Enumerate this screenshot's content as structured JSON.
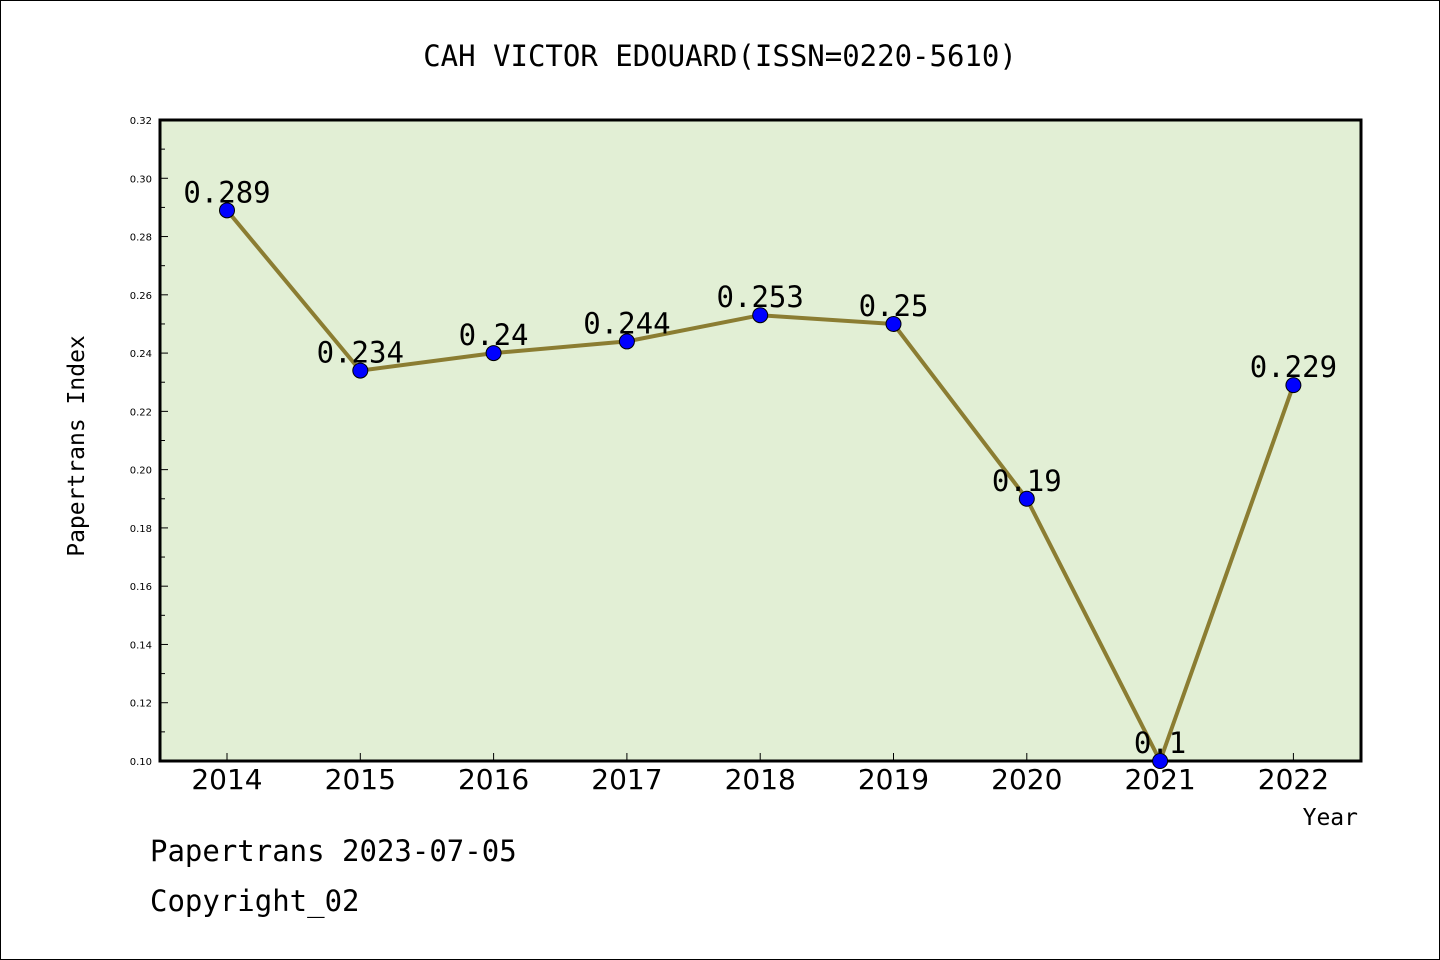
{
  "chart_data": {
    "type": "line",
    "title": "CAH VICTOR EDOUARD(ISSN=0220-5610)",
    "xlabel": "Year",
    "ylabel": "Papertrans Index",
    "categories": [
      "2014",
      "2015",
      "2016",
      "2017",
      "2018",
      "2019",
      "2020",
      "2021",
      "2022"
    ],
    "series": [
      {
        "values": [
          0.289,
          0.234,
          0.24,
          0.244,
          0.253,
          0.25,
          0.19,
          0.1,
          0.229
        ],
        "labels": [
          "0.289",
          "0.234",
          "0.24",
          "0.244",
          "0.253",
          "0.25",
          "0.19",
          "0.1",
          "0.229"
        ]
      }
    ],
    "ylim": [
      0.1,
      0.32
    ],
    "yticks": [
      "0.10",
      "0.12",
      "0.14",
      "0.16",
      "0.18",
      "0.20",
      "0.22",
      "0.24",
      "0.26",
      "0.28",
      "0.30",
      "0.32"
    ],
    "grid": false,
    "colors": {
      "plot_background": "#e2efd5",
      "line": "#8b7d32",
      "marker": "#0000ff"
    }
  },
  "footer": {
    "line1": "Papertrans 2023-07-05",
    "line2": "Copyright_02"
  }
}
